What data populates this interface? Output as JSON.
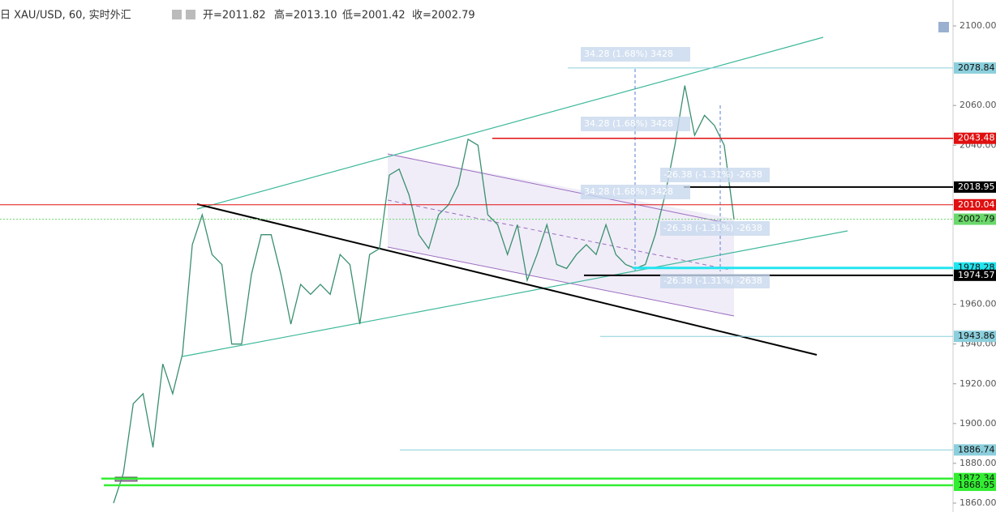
{
  "header": {
    "symbol": "日 XAU/USD, 60, 实时外汇",
    "open": "开=2011.82",
    "high": "高=2013.10",
    "low": "低=2001.42",
    "close": "收=2002.79"
  },
  "chart_data": {
    "type": "line",
    "color": "#3a8f6f",
    "values": [
      1860,
      1875,
      1910,
      1915,
      1888,
      1930,
      1915,
      1935,
      1990,
      2005,
      1985,
      1980,
      1940,
      1940,
      1975,
      1995,
      1995,
      1975,
      1950,
      1970,
      1965,
      1970,
      1965,
      1985,
      1980,
      1950,
      1985,
      1988,
      2025,
      2028,
      2015,
      1995,
      1988,
      2005,
      2010,
      2020,
      2043,
      2040,
      2005,
      2000,
      1985,
      2000,
      1972,
      1985,
      2000,
      1980,
      1978,
      1985,
      1990,
      1985,
      2000,
      1985,
      1980,
      1978,
      1980,
      1995,
      2015,
      2040,
      2070,
      2045,
      2055,
      2050,
      2040,
      2002.79
    ],
    "ylim": [
      1856,
      2110
    ],
    "yticks": [
      {
        "value": 2100,
        "label": "2100.00"
      },
      {
        "value": 2060,
        "label": "2060.00"
      },
      {
        "value": 2040,
        "label": "2040.00"
      },
      {
        "value": 1960,
        "label": "1960.00"
      },
      {
        "value": 1940,
        "label": "1940.00"
      },
      {
        "value": 1920,
        "label": "1920.00"
      },
      {
        "value": 1900,
        "label": "1900.00"
      },
      {
        "value": 1880,
        "label": "1880.00"
      },
      {
        "value": 1860,
        "label": "1860.00"
      }
    ],
    "levels": [
      {
        "value": 2078.84,
        "color": "#8ccfdc"
      },
      {
        "value": 2043.48,
        "color": "#e01010"
      },
      {
        "value": 2018.95,
        "color": "#000000"
      },
      {
        "value": 2010.04,
        "color": "#e01010"
      },
      {
        "value": 2002.79,
        "color": "#6ad86a"
      },
      {
        "value": 1978.28,
        "color": "#22e5f0"
      },
      {
        "value": 1974.57,
        "color": "#000000"
      },
      {
        "value": 1943.86,
        "color": "#8ccfdc"
      },
      {
        "value": 1886.74,
        "color": "#8ccfdc"
      },
      {
        "value": 1872.34,
        "color": "#33ee33"
      },
      {
        "value": 1868.95,
        "color": "#33ee33"
      }
    ],
    "annotations": [
      "34.28 (1.68%) 3428",
      "34.28 (1.68%) 3428",
      "34.28 (1.68%) 3428",
      "-26.38 (-1.31%) -2638",
      "-26.38 (-1.31%) -2638",
      "-26.38 (-1.31%) -2638"
    ]
  }
}
